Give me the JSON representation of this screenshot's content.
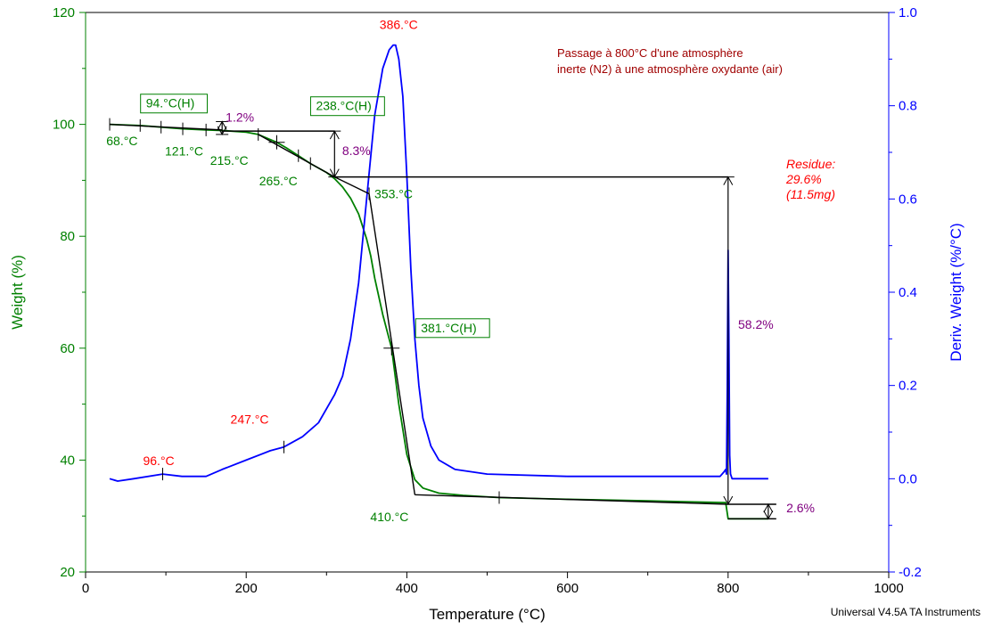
{
  "chart_data": {
    "type": "line",
    "xlabel": "Temperature (°C)",
    "ylabel_left": "Weight (%)",
    "ylabel_right": "Deriv. Weight (%/°C)",
    "xlim": [
      0,
      1000
    ],
    "ylim_left": [
      20,
      120
    ],
    "ylim_right": [
      -0.2,
      1.0
    ],
    "x_ticks": [
      0,
      200,
      400,
      600,
      800,
      1000
    ],
    "y_ticks_left": [
      20,
      40,
      60,
      80,
      100,
      120
    ],
    "y_ticks_right": [
      -0.2,
      0.0,
      0.2,
      0.4,
      0.6,
      0.8,
      1.0
    ],
    "grid": false,
    "colors": {
      "weight": "#008000",
      "deriv": "#0000ff",
      "analysis": "#000000",
      "peak_label": "#ff0000",
      "step_label": "#800080",
      "note": "#a00000"
    },
    "series": [
      {
        "axis": "left",
        "x": [
          30,
          68,
          94,
          121,
          150,
          170,
          200,
          215,
          238,
          250,
          265,
          280,
          300,
          310,
          320,
          330,
          340,
          350,
          355,
          360,
          370,
          381,
          390,
          400,
          410,
          420,
          440,
          470,
          515,
          600,
          700,
          797,
          800,
          850
        ],
        "values": [
          100.0,
          99.8,
          99.5,
          99.2,
          99.0,
          98.9,
          98.6,
          98.2,
          96.8,
          95.8,
          94.4,
          93.0,
          91.4,
          90.3,
          88.8,
          86.8,
          84.0,
          79.5,
          76.5,
          72.5,
          66.0,
          60.0,
          50.0,
          41.0,
          36.5,
          35.0,
          34.1,
          33.7,
          33.3,
          33.0,
          32.7,
          32.4,
          29.5,
          29.5
        ]
      },
      {
        "axis": "right",
        "x": [
          30,
          40,
          60,
          96,
          120,
          150,
          170,
          200,
          230,
          247,
          270,
          290,
          310,
          320,
          330,
          340,
          350,
          360,
          370,
          378,
          383,
          386,
          390,
          395,
          400,
          405,
          410,
          415,
          420,
          430,
          440,
          460,
          500,
          600,
          700,
          790,
          795,
          797,
          798,
          799,
          800,
          801,
          802,
          803,
          805,
          850
        ],
        "values": [
          0.0,
          -0.005,
          0.0,
          0.01,
          0.005,
          0.005,
          0.02,
          0.04,
          0.06,
          0.068,
          0.09,
          0.12,
          0.18,
          0.22,
          0.3,
          0.42,
          0.6,
          0.78,
          0.88,
          0.92,
          0.93,
          0.93,
          0.9,
          0.82,
          0.65,
          0.45,
          0.3,
          0.2,
          0.13,
          0.07,
          0.04,
          0.02,
          0.01,
          0.005,
          0.005,
          0.005,
          0.015,
          0.02,
          0.01,
          0.2,
          0.49,
          0.3,
          0.05,
          0.01,
          0.0,
          0.0
        ]
      }
    ],
    "annotations": {
      "peak_labels": [
        {
          "text": "386.°C",
          "x": 386,
          "y": 0.93,
          "axis": "right",
          "dx": -18,
          "dy": -18
        },
        {
          "text": "247.°C",
          "x": 247,
          "y": 0.068,
          "axis": "right",
          "dx": -60,
          "dy": -26
        },
        {
          "text": "96.°C",
          "x": 96,
          "y": 0.01,
          "axis": "right",
          "dx": -22,
          "dy": -10
        }
      ],
      "onset_labels": [
        {
          "text": "68.°C",
          "x": 68,
          "y": 99.8,
          "dx": -38,
          "dy": 22
        },
        {
          "text": "121.°C",
          "x": 121,
          "y": 99.2,
          "dx": -20,
          "dy": 30
        },
        {
          "text": "215.°C",
          "x": 215,
          "y": 98.2,
          "dx": -54,
          "dy": 34
        },
        {
          "text": "265.°C",
          "x": 265,
          "y": 94.4,
          "dx": -44,
          "dy": 33
        },
        {
          "text": "353.°C",
          "x": 353,
          "y": 79.5,
          "dx": 6,
          "dy": -46
        },
        {
          "text": "410.°C",
          "x": 410,
          "y": 34,
          "dx": -50,
          "dy": 31
        }
      ],
      "boxed_labels": [
        {
          "text": "94.°C(H)",
          "x": 94,
          "y": 99.5,
          "dx": -23,
          "dy": -22
        },
        {
          "text": "238.°C(H)",
          "x": 238,
          "y": 96.8,
          "dx": 38,
          "dy": -36
        },
        {
          "text": "381.°C(H)",
          "x": 381,
          "y": 60,
          "dx": 27,
          "dy": -18
        }
      ],
      "step_labels": [
        {
          "text": "1.2%",
          "x": 170,
          "y": 100.5
        },
        {
          "text": "8.3%",
          "x": 315,
          "y": 94.5
        },
        {
          "text": "58.2%",
          "x": 808,
          "y": 63.5
        },
        {
          "text": "2.6%",
          "x": 868,
          "y": 30.7
        }
      ],
      "residue": [
        "Residue:",
        "29.6%",
        "(11.5mg)"
      ],
      "note": [
        "Passage à 800°C d'une atmosphère",
        "inerte (N2) à une atmosphère oxydante (air)"
      ],
      "credit": "Universal V4.5A TA Instruments"
    }
  }
}
